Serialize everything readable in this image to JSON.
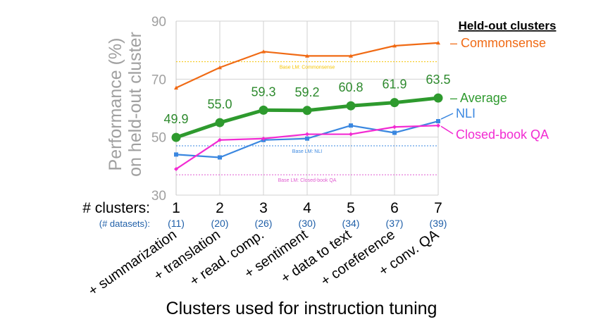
{
  "chart_data": {
    "type": "line",
    "title": "",
    "ylabel_line1": "Performance (%)",
    "ylabel_line2": "on held-out cluster",
    "xlabel": "Clusters used for instruction tuning",
    "ylim": [
      30,
      90
    ],
    "yticks": [
      "30",
      "50",
      "70",
      "90"
    ],
    "grid": true,
    "x": [
      1,
      2,
      3,
      4,
      5,
      6,
      7
    ],
    "clusters_label": "# clusters:",
    "datasets_label": "(# datasets):",
    "cluster_numbers": [
      "1",
      "2",
      "3",
      "4",
      "5",
      "6",
      "7"
    ],
    "dataset_counts": [
      "(11)",
      "(20)",
      "(26)",
      "(30)",
      "(34)",
      "(37)",
      "(39)"
    ],
    "cluster_names": [
      "+ summarization",
      "+ translation",
      "+ read. comp.",
      "+ sentiment",
      "+ data to text",
      "+ coreference",
      "+ conv. QA"
    ],
    "legend_title": "Held-out clusters",
    "series": [
      {
        "name": "Commonsense",
        "label": "– Commonsense",
        "color": "#f06a14",
        "values": [
          67,
          74,
          79.5,
          78,
          78,
          81.5,
          82.5
        ],
        "marker": "triangle",
        "width": 2.2
      },
      {
        "name": "Average",
        "label": "– Average",
        "color": "#2e9a2e",
        "values": [
          49.9,
          55.0,
          59.3,
          59.2,
          60.8,
          61.9,
          63.5
        ],
        "marker": "circle",
        "width": 5
      },
      {
        "name": "NLI",
        "label": "NLI",
        "color": "#3a87e0",
        "values": [
          44,
          43,
          49,
          49.5,
          54,
          51.5,
          55.5
        ],
        "marker": "square",
        "width": 2.2
      },
      {
        "name": "Closed-book QA",
        "label": "Closed-book QA",
        "color": "#f22bd2",
        "values": [
          39,
          49,
          49.5,
          51,
          51,
          53.5,
          54
        ],
        "marker": "diamond",
        "width": 2.2
      }
    ],
    "average_labels": [
      "49.9",
      "55.0",
      "59.3",
      "59.2",
      "60.8",
      "61.9",
      "63.5"
    ],
    "baselines": [
      {
        "name": "Commonsense",
        "label": "Base LM: Commonsense",
        "value": 76,
        "color": "#f5c400"
      },
      {
        "name": "NLI",
        "label": "Base LM: NLI",
        "value": 47,
        "color": "#3a87e0"
      },
      {
        "name": "Closed-book QA",
        "label": "Base LM: Closed-book QA",
        "value": 37,
        "color": "#e05bd0"
      }
    ]
  }
}
